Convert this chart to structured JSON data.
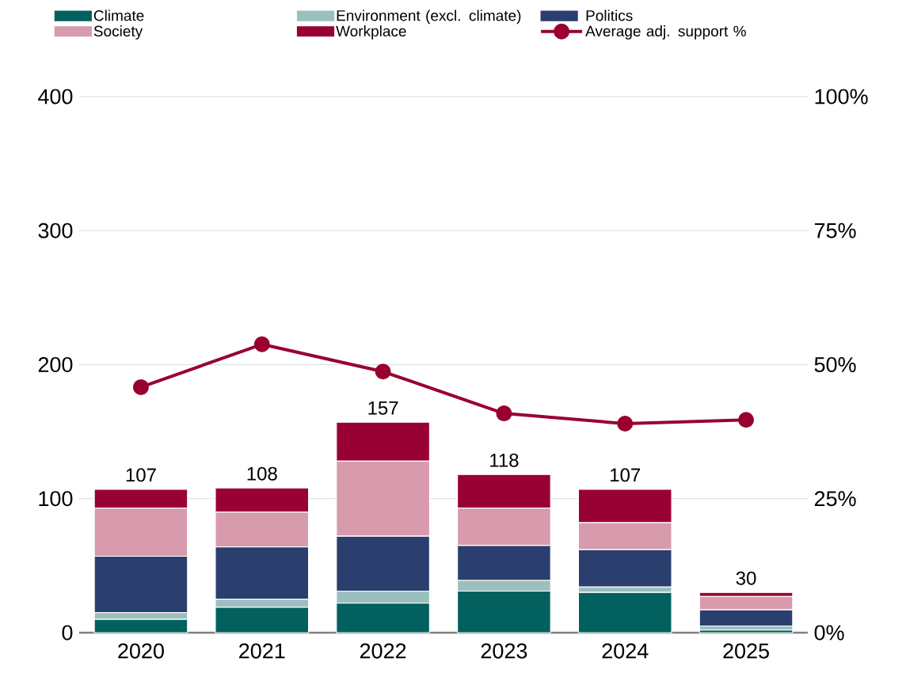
{
  "chart_data": {
    "type": "bar",
    "stacked": true,
    "categories": [
      "2020",
      "2021",
      "2022",
      "2023",
      "2024",
      "2025"
    ],
    "series": [
      {
        "name": "Climate",
        "color": "#02615f",
        "values": [
          10,
          19,
          22,
          31,
          30,
          2
        ]
      },
      {
        "name": "Environment (excl. climate)",
        "color": "#9bbfbf",
        "values": [
          5,
          6,
          9,
          8,
          4,
          3
        ]
      },
      {
        "name": "Politics",
        "color": "#2a3f6e",
        "values": [
          42,
          39,
          41,
          26,
          28,
          12
        ]
      },
      {
        "name": "Society",
        "color": "#d89aad",
        "values": [
          36,
          26,
          56,
          28,
          20,
          10
        ]
      },
      {
        "name": "Workplace",
        "color": "#990033",
        "values": [
          14,
          18,
          29,
          25,
          25,
          3
        ]
      },
      {
        "name": "Average adj. support %",
        "type": "line",
        "axis": "y2",
        "color": "#99002f",
        "marker": "circle",
        "line_style": "solid",
        "values": [
          45.8,
          53.8,
          48.7,
          40.9,
          39.0,
          39.7
        ]
      }
    ],
    "totals": [
      "107",
      "108",
      "157",
      "118",
      "107",
      "30"
    ],
    "ylim": [
      0,
      400
    ],
    "yticks": [
      0,
      100,
      200,
      300,
      400
    ],
    "y2lim": [
      0,
      100
    ],
    "y2ticks": [
      {
        "value": 0,
        "label": "0%"
      },
      {
        "value": 25,
        "label": "25%"
      },
      {
        "value": 50,
        "label": "50%"
      },
      {
        "value": 75,
        "label": "75%"
      },
      {
        "value": 100,
        "label": "100%"
      }
    ],
    "grid": "y",
    "legend": "top"
  }
}
